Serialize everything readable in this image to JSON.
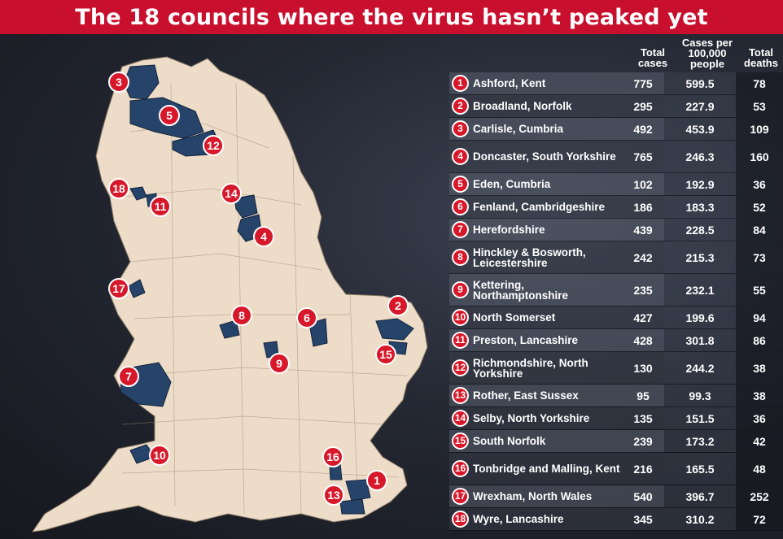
{
  "title": "The 18 councils where the virus hasn’t peaked  yet",
  "headers": {
    "total_cases": "Total cases",
    "cases_per": "Cases per 100,000 people",
    "total_deaths": "Total deaths"
  },
  "colors": {
    "title_bg": "#c8102e",
    "land": "#eddcc7",
    "council": "#26436a",
    "badge": "#d7182a"
  },
  "rows": [
    {
      "num": "1",
      "name": "Ashford, Kent",
      "cases": "775",
      "per100k": "599.5",
      "deaths": "78"
    },
    {
      "num": "2",
      "name": "Broadland, Norfolk",
      "cases": "295",
      "per100k": "227.9",
      "deaths": "53"
    },
    {
      "num": "3",
      "name": "Carlisle, Cumbria",
      "cases": "492",
      "per100k": "453.9",
      "deaths": "109"
    },
    {
      "num": "4",
      "name": "Doncaster, South Yorkshire",
      "cases": "765",
      "per100k": "246.3",
      "deaths": "160"
    },
    {
      "num": "5",
      "name": "Eden, Cumbria",
      "cases": "102",
      "per100k": "192.9",
      "deaths": "36"
    },
    {
      "num": "6",
      "name": "Fenland, Cambridgeshire",
      "cases": "186",
      "per100k": "183.3",
      "deaths": "52"
    },
    {
      "num": "7",
      "name": "Herefordshire",
      "cases": "439",
      "per100k": "228.5",
      "deaths": "84"
    },
    {
      "num": "8",
      "name": "Hinckley & Bosworth, Leicestershire",
      "cases": "242",
      "per100k": "215.3",
      "deaths": "73"
    },
    {
      "num": "9",
      "name": "Kettering, Northamptonshire",
      "cases": "235",
      "per100k": "232.1",
      "deaths": "55"
    },
    {
      "num": "10",
      "name": "North Somerset",
      "cases": "427",
      "per100k": "199.6",
      "deaths": "94"
    },
    {
      "num": "11",
      "name": "Preston, Lancashire",
      "cases": "428",
      "per100k": "301.8",
      "deaths": "86"
    },
    {
      "num": "12",
      "name": "Richmondshire, North Yorkshire",
      "cases": "130",
      "per100k": "244.2",
      "deaths": "38"
    },
    {
      "num": "13",
      "name": "Rother, East Sussex",
      "cases": "95",
      "per100k": "99.3",
      "deaths": "38"
    },
    {
      "num": "14",
      "name": "Selby, North Yorkshire",
      "cases": "135",
      "per100k": "151.5",
      "deaths": "36"
    },
    {
      "num": "15",
      "name": "South Norfolk",
      "cases": "239",
      "per100k": "173.2",
      "deaths": "42"
    },
    {
      "num": "16",
      "name": "Tonbridge and Malling, Kent",
      "cases": "216",
      "per100k": "165.5",
      "deaths": "48"
    },
    {
      "num": "17",
      "name": "Wrexham, North Wales",
      "cases": "540",
      "per100k": "396.7",
      "deaths": "252"
    },
    {
      "num": "18",
      "name": "Wyre, Lancashire",
      "cases": "345",
      "per100k": "310.2",
      "deaths": "72"
    }
  ],
  "map_labels": [
    "3",
    "5",
    "12",
    "18",
    "11",
    "14",
    "4",
    "17",
    "8",
    "6",
    "2",
    "15",
    "9",
    "7",
    "10",
    "16",
    "1",
    "13"
  ]
}
